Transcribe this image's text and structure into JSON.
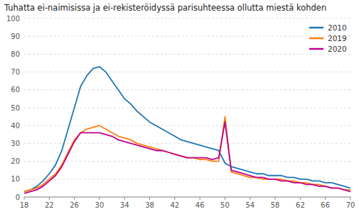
{
  "chart_data": {
    "type": "line",
    "title": "Tuhatta ei-naimisissa ja ei-rekisteröidyssä parisuhteessa ollutta miestä kohden",
    "x": [
      18,
      19,
      20,
      21,
      22,
      23,
      24,
      25,
      26,
      27,
      28,
      29,
      30,
      31,
      32,
      33,
      34,
      35,
      36,
      37,
      38,
      39,
      40,
      41,
      42,
      43,
      44,
      45,
      46,
      47,
      48,
      49,
      50,
      51,
      52,
      53,
      54,
      55,
      56,
      57,
      58,
      59,
      60,
      61,
      62,
      63,
      64,
      65,
      66,
      67,
      68,
      69,
      70
    ],
    "series": [
      {
        "name": "2010",
        "color": "#1f77b4",
        "values": [
          3,
          4,
          6,
          9,
          13,
          18,
          26,
          38,
          50,
          62,
          68,
          72,
          73,
          70,
          65,
          60,
          55,
          52,
          48,
          45,
          42,
          40,
          38,
          36,
          34,
          32,
          31,
          30,
          29,
          28,
          27,
          26,
          19,
          17,
          16,
          15,
          14,
          13,
          13,
          12,
          12,
          12,
          11,
          11,
          10,
          10,
          9,
          9,
          8,
          8,
          7,
          6,
          5
        ]
      },
      {
        "name": "2019",
        "color": "#ff7f0e",
        "values": [
          3,
          4,
          5,
          7,
          10,
          13,
          18,
          25,
          32,
          36,
          38,
          39,
          40,
          38,
          36,
          34,
          33,
          32,
          30,
          29,
          28,
          27,
          26,
          25,
          24,
          23,
          22,
          22,
          21,
          21,
          20,
          20,
          45,
          14,
          13,
          12,
          11,
          11,
          10,
          10,
          10,
          10,
          9,
          9,
          8,
          8,
          7,
          7,
          6,
          5,
          5,
          4,
          4
        ]
      },
      {
        "name": "2020",
        "color": "#c0008c",
        "values": [
          2,
          3,
          4,
          6,
          9,
          12,
          17,
          24,
          31,
          36,
          36,
          36,
          36,
          35,
          34,
          32,
          31,
          30,
          29,
          28,
          27,
          26,
          26,
          25,
          24,
          23,
          22,
          22,
          22,
          22,
          21,
          22,
          42,
          15,
          14,
          13,
          12,
          11,
          11,
          10,
          10,
          9,
          9,
          8,
          8,
          7,
          7,
          6,
          6,
          5,
          5,
          4,
          3
        ]
      }
    ],
    "xlim": [
      18,
      70
    ],
    "ylim": [
      0,
      100
    ],
    "xticks": [
      18,
      22,
      26,
      30,
      34,
      38,
      42,
      46,
      50,
      54,
      58,
      62,
      66,
      70
    ],
    "yticks": [
      0,
      10,
      20,
      30,
      40,
      50,
      60,
      70,
      80,
      90,
      100
    ],
    "grid": true,
    "legend": "upper right"
  }
}
